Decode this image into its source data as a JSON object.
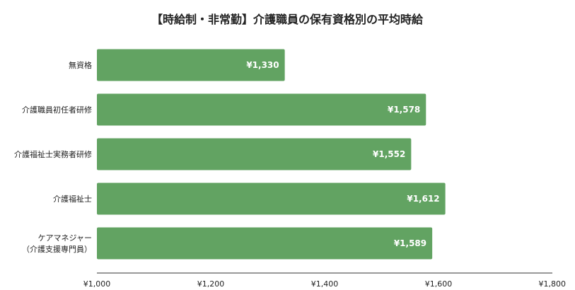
{
  "chart_data": {
    "type": "bar",
    "orientation": "horizontal",
    "title": "【時給制・非常勤】介護職員の保有資格別の平均時給",
    "categories": [
      [
        "無資格"
      ],
      [
        "介護職員初任者研修"
      ],
      [
        "介護福祉士実務者研修"
      ],
      [
        "介護福祉士"
      ],
      [
        "ケアマネジャー",
        "（介護支援専門員）"
      ]
    ],
    "values": [
      1330,
      1578,
      1552,
      1612,
      1589
    ],
    "value_labels": [
      "¥1,330",
      "¥1,578",
      "¥1,552",
      "¥1,612",
      "¥1,589"
    ],
    "xlim": [
      1000,
      1800
    ],
    "x_ticks": [
      1000,
      1200,
      1400,
      1600,
      1800
    ],
    "x_tick_labels": [
      "¥1,000",
      "¥1,200",
      "¥1,400",
      "¥1,600",
      "¥1,800"
    ],
    "grid": false,
    "legend": "none",
    "bar_color": "#62a362",
    "label_color": "#ffffff"
  }
}
